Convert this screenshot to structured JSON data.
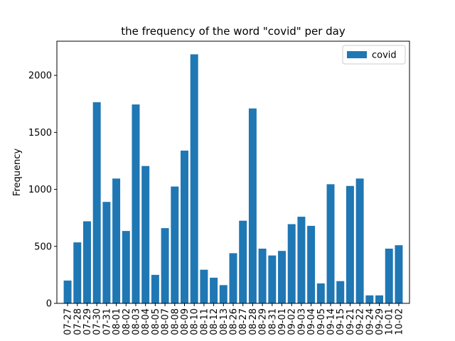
{
  "chart_data": {
    "type": "bar",
    "title": "the frequency of the word \"covid\" per day",
    "xlabel": "",
    "ylabel": "Frequency",
    "ylim": [
      0,
      2300
    ],
    "yticks": [
      0,
      500,
      1000,
      1500,
      2000
    ],
    "grid": false,
    "legend_position": "top-right",
    "categories": [
      "07-27",
      "07-28",
      "07-29",
      "07-30",
      "07-31",
      "08-01",
      "08-02",
      "08-03",
      "08-04",
      "08-05",
      "08-07",
      "08-08",
      "08-09",
      "08-10",
      "08-11",
      "08-12",
      "08-13",
      "08-26",
      "08-27",
      "08-28",
      "08-29",
      "08-31",
      "09-01",
      "09-02",
      "09-03",
      "09-04",
      "09-05",
      "09-14",
      "09-15",
      "09-21",
      "09-22",
      "09-24",
      "09-29",
      "10-01",
      "10-02"
    ],
    "series": [
      {
        "name": "covid",
        "color": "#1f77b4",
        "values": [
          200,
          535,
          720,
          1765,
          890,
          1095,
          635,
          1745,
          1205,
          250,
          660,
          1025,
          1340,
          2185,
          295,
          225,
          160,
          440,
          725,
          1710,
          480,
          420,
          460,
          695,
          760,
          680,
          175,
          1045,
          195,
          1030,
          1095,
          70,
          70,
          480,
          510
        ]
      }
    ]
  }
}
